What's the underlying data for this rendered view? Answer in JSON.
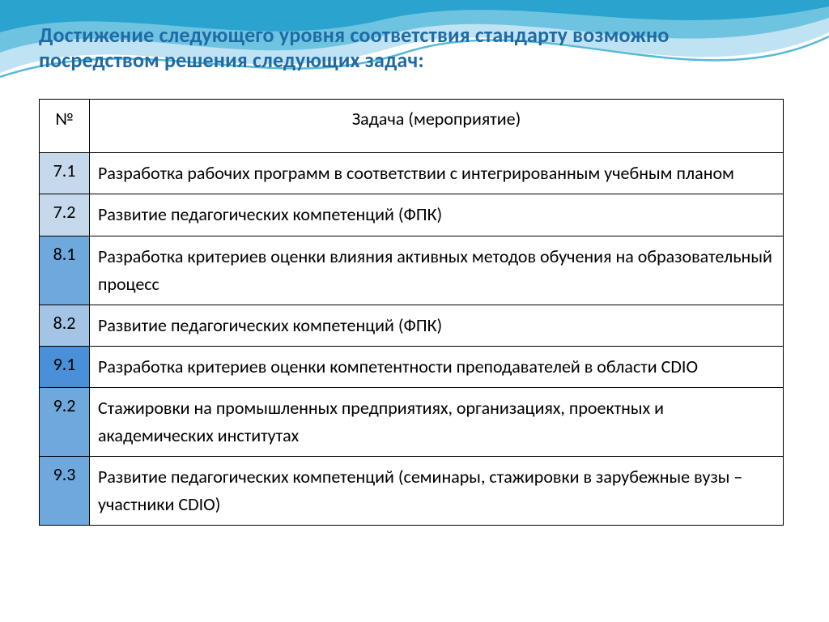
{
  "title": "Достижение следующего уровня соответствия стандарту возможно посредством решения следующих задач:",
  "title_color": "#1f6aa5",
  "headers": {
    "num": "№",
    "task": "Задача (мероприятие)"
  },
  "row_colors": {
    "light1": "#c6d9ec",
    "light2": "#a4c4e6",
    "mid": "#6fa8dc",
    "dark": "#4a90d9"
  },
  "rows": [
    {
      "num": "7.1",
      "task": "Разработка рабочих программ в соответствии с интегрированным учебным планом",
      "num_bg": "light1"
    },
    {
      "num": "7.2",
      "task": "Развитие педагогических компетенций (ФПК)",
      "num_bg": "light1"
    },
    {
      "num": "8.1",
      "task": "Разработка критериев оценки влияния  активных методов обучения на образовательный процесс",
      "num_bg": "mid"
    },
    {
      "num": "8.2",
      "task": "Развитие педагогических компетенций (ФПК)",
      "num_bg": "light2"
    },
    {
      "num": "9.1",
      "task": "Разработка критериев оценки компетентности преподавателей в области CDIO",
      "num_bg": "dark"
    },
    {
      "num": "9.2",
      "task": "Стажировки на промышленных предприятиях, организациях, проектных и академических институтах",
      "num_bg": "mid"
    },
    {
      "num": "9.3",
      "task": "Развитие педагогических компетенций (семинары, стажировки в зарубежные вузы – участники CDIO)",
      "num_bg": "mid"
    }
  ],
  "wave_colors": {
    "back": "#bfe3f2",
    "mid": "#6ec4e0",
    "front": "#2aa3cf",
    "line": "#57b9d8"
  }
}
